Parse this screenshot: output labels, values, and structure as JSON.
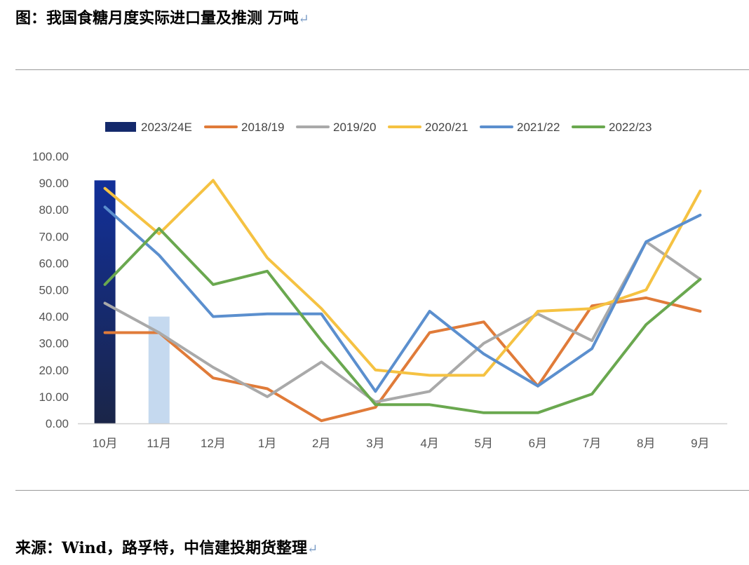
{
  "title": "图：我国食糖月度实际进口量及推测 万吨",
  "source": "来源：Wind，路孚特，中信建投期货整理",
  "return_mark": "↵",
  "chart_data": {
    "type": "bar+line",
    "categories": [
      "10月",
      "11月",
      "12月",
      "1月",
      "2月",
      "3月",
      "4月",
      "5月",
      "6月",
      "7月",
      "8月",
      "9月"
    ],
    "ylim": [
      0,
      100
    ],
    "yticks": [
      "0.00",
      "10.00",
      "20.00",
      "30.00",
      "40.00",
      "50.00",
      "60.00",
      "70.00",
      "80.00",
      "90.00",
      "100.00"
    ],
    "legend_position": "top",
    "grid": false,
    "bar_series": {
      "name": "2023/24E",
      "values": [
        91,
        40,
        null,
        null,
        null,
        null,
        null,
        null,
        null,
        null,
        null,
        null
      ],
      "colors": [
        "#14296b",
        "#c5d9ef"
      ]
    },
    "series": [
      {
        "name": "2018/19",
        "color": "#e07b39",
        "values": [
          34,
          34,
          17,
          13,
          1,
          6,
          34,
          38,
          14,
          44,
          47,
          42
        ]
      },
      {
        "name": "2019/20",
        "color": "#a9a9a9",
        "values": [
          45,
          34,
          21,
          10,
          23,
          8,
          12,
          30,
          41,
          31,
          68,
          54
        ]
      },
      {
        "name": "2020/21",
        "color": "#f5c242",
        "values": [
          88,
          71,
          91,
          62,
          43,
          20,
          18,
          18,
          42,
          43,
          50,
          87
        ]
      },
      {
        "name": "2021/22",
        "color": "#5b8fce",
        "values": [
          81,
          63,
          40,
          41,
          41,
          12,
          42,
          26,
          14,
          28,
          68,
          78
        ]
      },
      {
        "name": "2022/23",
        "color": "#6aa84f",
        "values": [
          52,
          73,
          52,
          57,
          31,
          7,
          7,
          4,
          4,
          11,
          37,
          54
        ]
      }
    ]
  }
}
